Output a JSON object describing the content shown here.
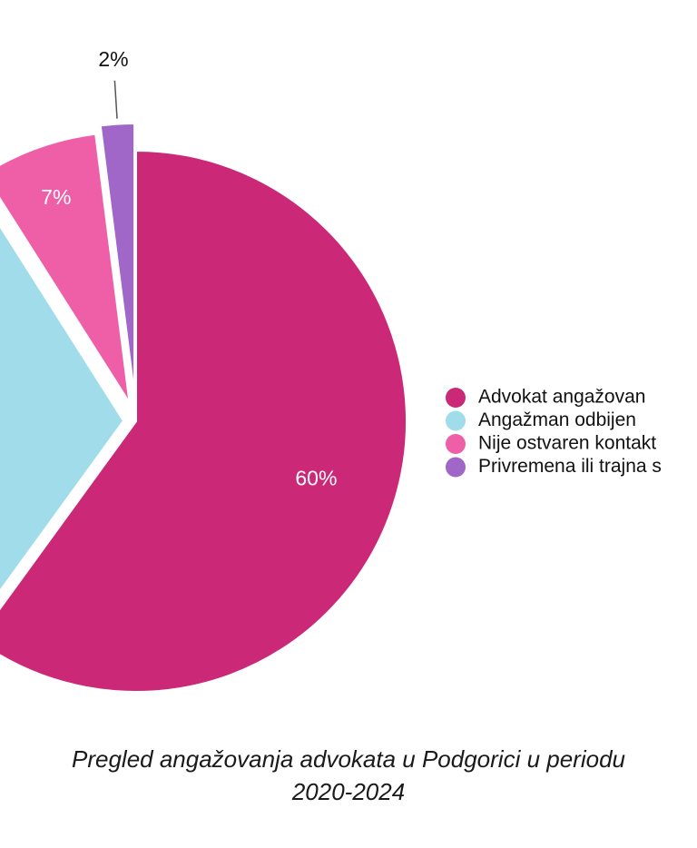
{
  "chart_data": {
    "type": "pie",
    "title": "",
    "caption_line1": "Pregled angažovanja advokata u Podgorici u periodu",
    "caption_line2": "2020-2024",
    "series": [
      {
        "name": "Advokat angažovan",
        "value": 60,
        "label": "60%",
        "color": "#CC2878"
      },
      {
        "name": "Angažman odbijen",
        "value": 31,
        "label": "",
        "color": "#A0DCEA"
      },
      {
        "name": "Nije ostvaren kontakt",
        "value": 7,
        "label": "7%",
        "color": "#EE5FA7"
      },
      {
        "name": "Privremena ili trajna s",
        "value": 2,
        "label": "2%",
        "color": "#A066C8"
      }
    ],
    "legend_position": "right",
    "label_color_inside": "#ffffff",
    "label_color_outside": "#111111"
  }
}
